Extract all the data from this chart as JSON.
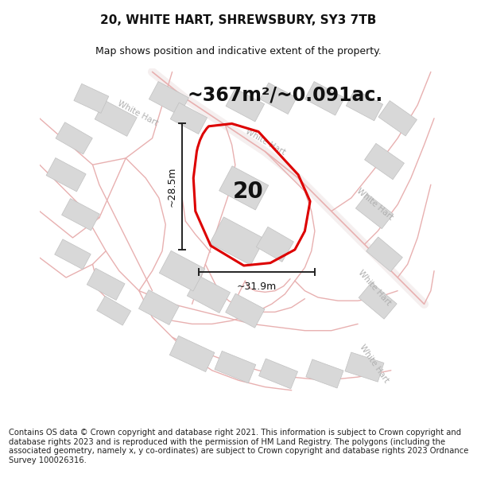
{
  "title": "20, WHITE HART, SHREWSBURY, SY3 7TB",
  "subtitle": "Map shows position and indicative extent of the property.",
  "area_text": "~367m²/~0.091ac.",
  "label_number": "20",
  "dim_height": "~28.5m",
  "dim_width": "~31.9m",
  "footer": "Contains OS data © Crown copyright and database right 2021. This information is subject to Crown copyright and database rights 2023 and is reproduced with the permission of HM Land Registry. The polygons (including the associated geometry, namely x, y co-ordinates) are subject to Crown copyright and database rights 2023 Ordnance Survey 100026316.",
  "bg_color": "#f7f3f3",
  "plot_color": "#dd0000",
  "road_color": "#e8b0b0",
  "road_outline_color": "#f0d0d0",
  "building_color": "#d8d8d8",
  "building_edge_color": "#c0c0c0",
  "road_label_color": "#b0b0b0",
  "title_fontsize": 11,
  "subtitle_fontsize": 9,
  "area_fontsize": 17,
  "number_fontsize": 20,
  "footer_fontsize": 7.2,
  "dim_fontsize": 9
}
